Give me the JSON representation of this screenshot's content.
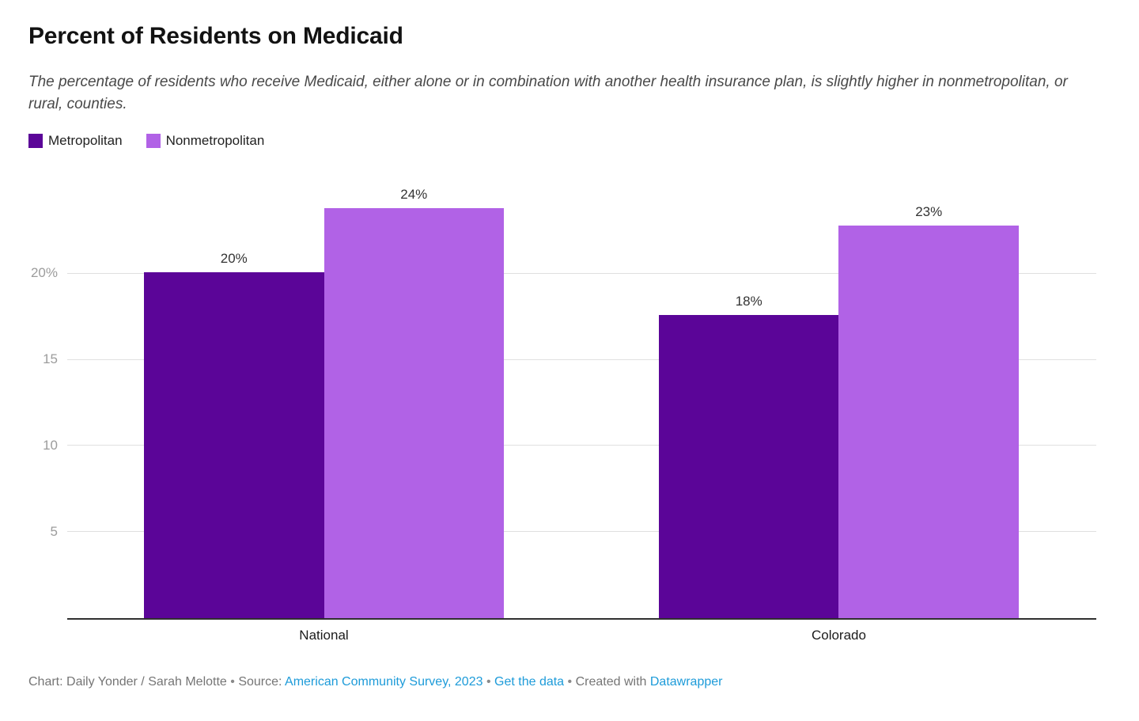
{
  "header": {
    "title": "Percent of Residents on Medicaid",
    "subtitle": "The percentage of residents who receive Medicaid, either alone or in combination with another health insurance plan, is slightly higher in nonmetropolitan, or rural, counties."
  },
  "legend": {
    "items": [
      {
        "label": "Metropolitan",
        "color": "#5b0598"
      },
      {
        "label": "Nonmetropolitan",
        "color": "#b162e6"
      }
    ]
  },
  "chart_data": {
    "type": "bar",
    "title": "Percent of Residents on Medicaid",
    "categories": [
      "National",
      "Colorado"
    ],
    "series": [
      {
        "name": "Metropolitan",
        "color": "#5b0598",
        "values": [
          20.1,
          17.6
        ],
        "labels": [
          "20%",
          "18%"
        ]
      },
      {
        "name": "Nonmetropolitan",
        "color": "#b162e6",
        "values": [
          23.8,
          22.8
        ],
        "labels": [
          "24%",
          "23%"
        ]
      }
    ],
    "xlabel": "",
    "ylabel": "",
    "ylim": [
      0,
      25
    ],
    "yticks": [
      {
        "value": 5,
        "label": "5"
      },
      {
        "value": 10,
        "label": "10"
      },
      {
        "value": 15,
        "label": "15"
      },
      {
        "value": 20,
        "label": "20%"
      }
    ],
    "grid": "horizontal",
    "legend_position": "top-left"
  },
  "footer": {
    "chart_credit": "Chart: Daily Yonder / Sarah Melotte",
    "bullet": "•",
    "source_label": "Source:",
    "source_link": "American Community Survey, 2023",
    "get_data_label": "Get the data",
    "created_with": "Created with",
    "datawrapper_label": "Datawrapper",
    "link_color": "#1d9bd9"
  }
}
